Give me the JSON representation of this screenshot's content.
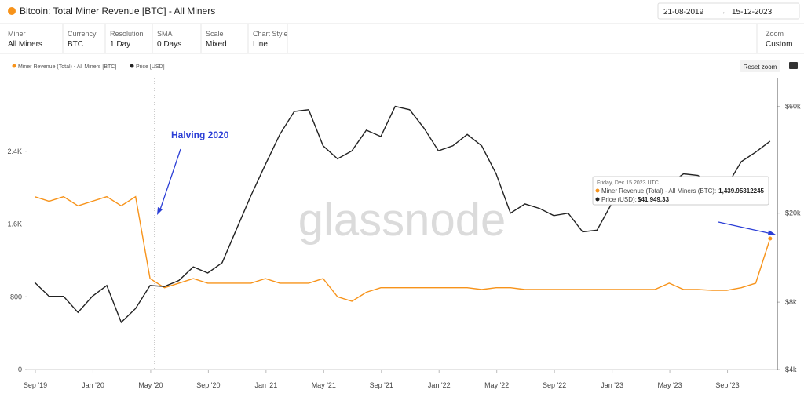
{
  "header": {
    "title": "Bitcoin: Total Miner Revenue [BTC] - All Miners",
    "date_from": "21-08-2019",
    "date_to": "15-12-2023"
  },
  "filters": [
    {
      "label": "Miner",
      "value": "All Miners"
    },
    {
      "label": "Currency",
      "value": "BTC"
    },
    {
      "label": "Resolution",
      "value": "1 Day"
    },
    {
      "label": "SMA",
      "value": "0 Days"
    },
    {
      "label": "Scale",
      "value": "Mixed"
    },
    {
      "label": "Chart Style",
      "value": "Line"
    }
  ],
  "zoom": {
    "label": "Zoom",
    "value": "Custom"
  },
  "reset_zoom": "Reset zoom",
  "watermark": "glassnode",
  "tooltip": {
    "date": "Friday, Dec 15 2023 UTC",
    "rows": [
      {
        "label": "Miner Revenue (Total) - All Miners (BTC):",
        "value": "1,439.95312245"
      },
      {
        "label": "Price (USD):",
        "value": "$41,949.33"
      }
    ]
  },
  "chart_data": {
    "type": "line",
    "annotation": "Halving 2020",
    "x": [
      "2019-09",
      "2019-10",
      "2019-11",
      "2019-12",
      "2020-01",
      "2020-02",
      "2020-03",
      "2020-04",
      "2020-05",
      "2020-06",
      "2020-07",
      "2020-08",
      "2020-09",
      "2020-10",
      "2020-11",
      "2020-12",
      "2021-01",
      "2021-02",
      "2021-03",
      "2021-04",
      "2021-05",
      "2021-06",
      "2021-07",
      "2021-08",
      "2021-09",
      "2021-10",
      "2021-11",
      "2021-12",
      "2022-01",
      "2022-02",
      "2022-03",
      "2022-04",
      "2022-05",
      "2022-06",
      "2022-07",
      "2022-08",
      "2022-09",
      "2022-10",
      "2022-11",
      "2022-12",
      "2023-01",
      "2023-02",
      "2023-03",
      "2023-04",
      "2023-05",
      "2023-06",
      "2023-07",
      "2023-08",
      "2023-09",
      "2023-10",
      "2023-11",
      "2023-12"
    ],
    "xticks": [
      {
        "value": "2019-09",
        "label": "Sep '19"
      },
      {
        "value": "2020-01",
        "label": "Jan '20"
      },
      {
        "value": "2020-05",
        "label": "May '20"
      },
      {
        "value": "2020-09",
        "label": "Sep '20"
      },
      {
        "value": "2021-01",
        "label": "Jan '21"
      },
      {
        "value": "2021-05",
        "label": "May '21"
      },
      {
        "value": "2021-09",
        "label": "Sep '21"
      },
      {
        "value": "2022-01",
        "label": "Jan '22"
      },
      {
        "value": "2022-05",
        "label": "May '22"
      },
      {
        "value": "2022-09",
        "label": "Sep '22"
      },
      {
        "value": "2023-01",
        "label": "Jan '23"
      },
      {
        "value": "2023-05",
        "label": "May '23"
      },
      {
        "value": "2023-09",
        "label": "Sep '23"
      }
    ],
    "ylim": [
      0,
      3200
    ],
    "yticks": [
      0,
      800,
      {
        "value": 1600,
        "label": "1.6K"
      },
      {
        "value": 2400,
        "label": "2.4K"
      }
    ],
    "y2lim": [
      4000,
      80000
    ],
    "y2_log": true,
    "y2ticks": [
      {
        "value": 4000,
        "label": "$4k"
      },
      {
        "value": 8000,
        "label": "$8k"
      },
      {
        "value": 20000,
        "label": "$20k"
      },
      {
        "value": 60000,
        "label": "$60k"
      }
    ],
    "series": [
      {
        "name": "Miner Revenue (Total) - All Miners [BTC]",
        "color": "#f7931a",
        "values": [
          1900,
          1850,
          1900,
          1800,
          1850,
          1900,
          1800,
          1900,
          1000,
          900,
          950,
          1000,
          950,
          950,
          950,
          950,
          1000,
          950,
          950,
          950,
          1000,
          800,
          750,
          850,
          900,
          900,
          900,
          900,
          900,
          900,
          900,
          880,
          900,
          900,
          880,
          880,
          880,
          880,
          880,
          880,
          880,
          880,
          880,
          880,
          950,
          880,
          880,
          870,
          870,
          900,
          950,
          1439.95312245
        ]
      },
      {
        "name": "Price [USD]",
        "color": "#222222",
        "axis": "y2",
        "values": [
          9800,
          8500,
          8500,
          7200,
          8500,
          9500,
          6500,
          7500,
          9500,
          9400,
          10000,
          11500,
          10800,
          12000,
          17000,
          24000,
          33000,
          45000,
          57000,
          58000,
          40000,
          35000,
          38000,
          47000,
          44000,
          60000,
          58000,
          48000,
          38000,
          40000,
          45000,
          40000,
          30000,
          20000,
          22000,
          21000,
          19500,
          20000,
          16500,
          16800,
          22000,
          23500,
          28000,
          29000,
          27000,
          30000,
          29500,
          26000,
          26500,
          34000,
          37500,
          41949.33
        ]
      }
    ]
  }
}
